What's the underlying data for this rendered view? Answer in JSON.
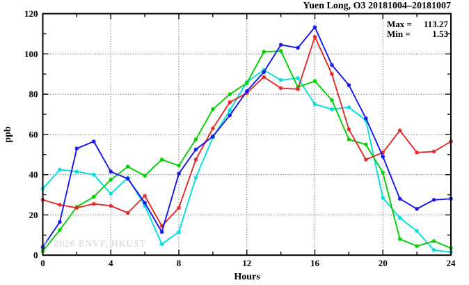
{
  "title": "Yuen Long, O3 20181004–20181007",
  "annotation": {
    "max_label": "Max =",
    "max_value": "113.27",
    "min_label": "Min =",
    "min_value": "1.53"
  },
  "watermark": "© 2026 ENVF, HKUST",
  "chart_data": {
    "type": "line",
    "title": "Yuen Long, O3 20181004–20181007",
    "xlabel": "Hours",
    "ylabel": "ppb",
    "xlim": [
      0,
      24
    ],
    "ylim": [
      0,
      120
    ],
    "x_major_ticks": [
      0,
      4,
      8,
      12,
      16,
      20,
      24
    ],
    "x_minor_step": 2,
    "y_major_ticks": [
      0,
      20,
      40,
      60,
      80,
      100,
      120
    ],
    "y_minor_step": 10,
    "grid": "dotted lines at interior major ticks",
    "legend": "none",
    "marker": "asterisk",
    "stat_max": 113.27,
    "stat_min": 1.53,
    "x": [
      0,
      1,
      2,
      3,
      4,
      5,
      6,
      7,
      8,
      9,
      10,
      11,
      12,
      13,
      14,
      15,
      16,
      17,
      18,
      19,
      20,
      21,
      22,
      23,
      24
    ],
    "series": [
      {
        "name": "day-cyan",
        "color": "#00dede",
        "values": [
          33,
          42.5,
          41.5,
          40,
          30.5,
          38.5,
          24.5,
          5.5,
          11.5,
          38.5,
          58.5,
          72,
          86,
          92,
          87,
          88,
          75,
          72.5,
          73.5,
          67,
          28.5,
          18.5,
          12,
          2.5,
          1.53
        ]
      },
      {
        "name": "day-green",
        "color": "#00cf00",
        "values": [
          2,
          12.5,
          24,
          29,
          37.5,
          44,
          39.5,
          47.5,
          44.5,
          57.5,
          72.5,
          80,
          85.5,
          101,
          101.5,
          83.5,
          86.5,
          77,
          57.5,
          55,
          41,
          8,
          4.5,
          7,
          3.5
        ]
      },
      {
        "name": "day-red",
        "color": "#e32929",
        "values": [
          27.5,
          25,
          23.5,
          25.5,
          24.5,
          21,
          29.5,
          14.5,
          23.5,
          47.5,
          63,
          76,
          80.5,
          88.5,
          83,
          82.5,
          108.5,
          90,
          62.5,
          47.5,
          51,
          62,
          51,
          51.5,
          56.5
        ]
      },
      {
        "name": "day-blue",
        "color": "#1414eb",
        "values": [
          4,
          16.5,
          53,
          56.5,
          41.5,
          38,
          26,
          11.5,
          40.5,
          52.5,
          59,
          69.5,
          81.5,
          91,
          104.5,
          103,
          113.27,
          94.5,
          84.5,
          68,
          49,
          28,
          23,
          27.5,
          28
        ]
      }
    ]
  }
}
